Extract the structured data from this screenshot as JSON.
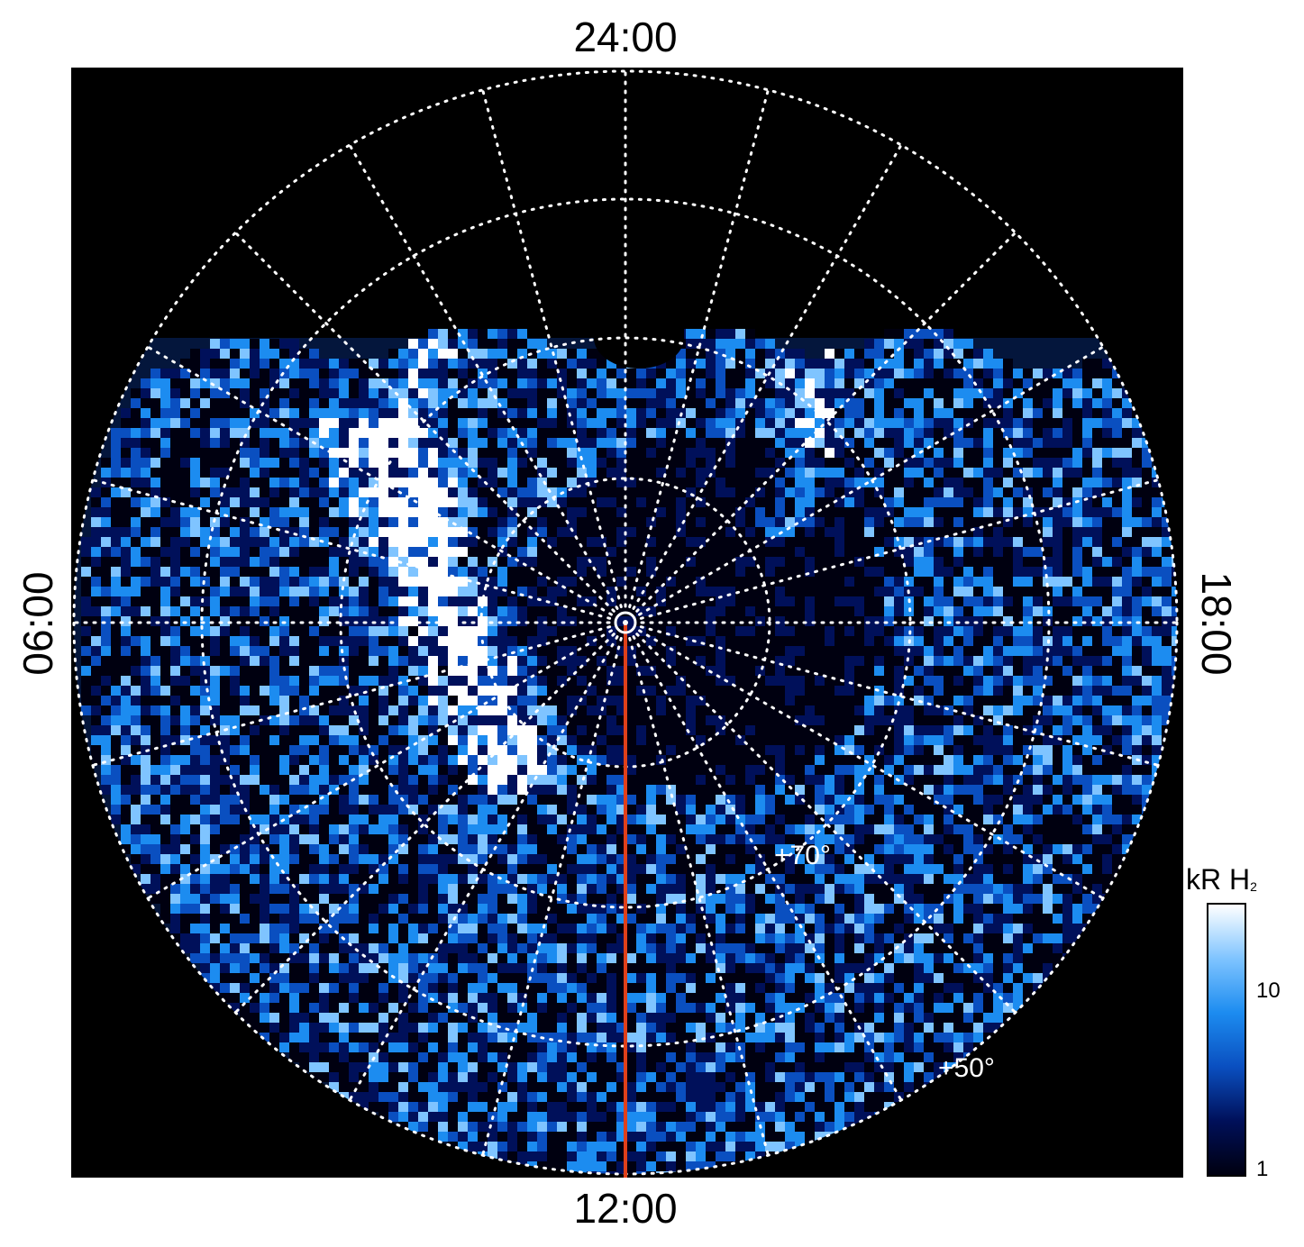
{
  "local_time_labels": {
    "top": "24:00",
    "bottom": "12:00",
    "left": "06:00",
    "right": "18:00"
  },
  "latitude_labels": {
    "inner": "+70°",
    "outer": "+50°"
  },
  "colorbar": {
    "title": "kR H",
    "title_subscript": "2",
    "tick_labels": [
      "10",
      "1"
    ],
    "scale": "log",
    "colors": [
      "#000010",
      "#00105a",
      "#0a4fc0",
      "#1c8cf0",
      "#7fc4ff",
      "#ffffff"
    ]
  },
  "colors": {
    "background": "#000000",
    "grid": "#ffffff",
    "meridian_marker": "#e0401a"
  }
}
